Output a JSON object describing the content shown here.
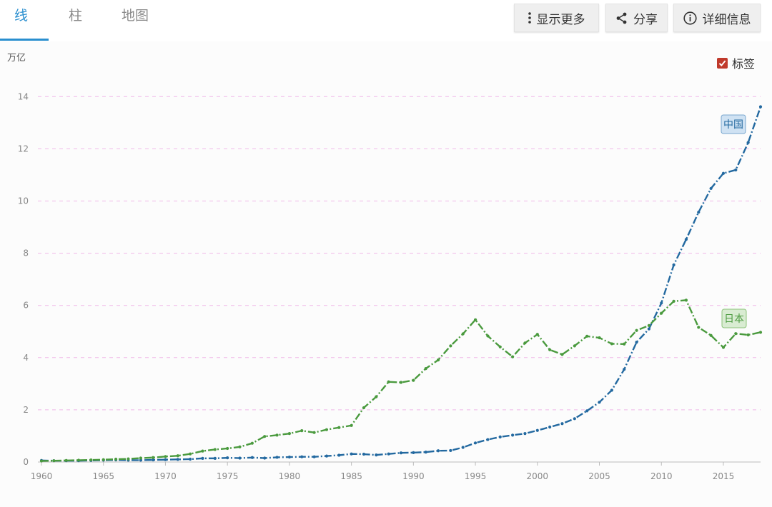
{
  "tabs": [
    {
      "label": "线",
      "active": true
    },
    {
      "label": "柱",
      "active": false
    },
    {
      "label": "地图",
      "active": false
    }
  ],
  "toolbar": {
    "more_label": "显示更多",
    "share_label": "分享",
    "details_label": "详细信息"
  },
  "labels_toggle": {
    "label": "标签",
    "checked": true
  },
  "colors": {
    "accent": "#2a8fcf",
    "china": "#2369a0",
    "japan": "#4a9a3e",
    "grid": "#f0b8e8",
    "checkbox": "#c0392b"
  },
  "chart_data": {
    "type": "line",
    "title": "",
    "ylabel": "万亿",
    "xlabel": "",
    "ylim": [
      0,
      14.5
    ],
    "xlim": [
      1960,
      2018
    ],
    "yticks": [
      0,
      2,
      4,
      6,
      8,
      10,
      12,
      14
    ],
    "xticks": [
      1960,
      1965,
      1970,
      1975,
      1980,
      1985,
      1990,
      1995,
      2000,
      2005,
      2010,
      2015
    ],
    "x": [
      1960,
      1961,
      1962,
      1963,
      1964,
      1965,
      1966,
      1967,
      1968,
      1969,
      1970,
      1971,
      1972,
      1973,
      1974,
      1975,
      1976,
      1977,
      1978,
      1979,
      1980,
      1981,
      1982,
      1983,
      1984,
      1985,
      1986,
      1987,
      1988,
      1989,
      1990,
      1991,
      1992,
      1993,
      1994,
      1995,
      1996,
      1997,
      1998,
      1999,
      2000,
      2001,
      2002,
      2003,
      2004,
      2005,
      2006,
      2007,
      2008,
      2009,
      2010,
      2011,
      2012,
      2013,
      2014,
      2015,
      2016,
      2017,
      2018
    ],
    "series": [
      {
        "name": "中国",
        "values": [
          0.06,
          0.05,
          0.05,
          0.05,
          0.06,
          0.07,
          0.08,
          0.07,
          0.07,
          0.08,
          0.09,
          0.1,
          0.11,
          0.14,
          0.14,
          0.16,
          0.15,
          0.17,
          0.15,
          0.18,
          0.19,
          0.2,
          0.2,
          0.23,
          0.26,
          0.31,
          0.3,
          0.27,
          0.31,
          0.35,
          0.36,
          0.38,
          0.43,
          0.44,
          0.56,
          0.73,
          0.86,
          0.96,
          1.03,
          1.09,
          1.21,
          1.34,
          1.47,
          1.66,
          1.96,
          2.29,
          2.75,
          3.55,
          4.59,
          5.1,
          6.09,
          7.55,
          8.53,
          9.57,
          10.48,
          11.06,
          11.19,
          12.24,
          13.61
        ]
      },
      {
        "name": "日本",
        "values": [
          0.04,
          0.05,
          0.06,
          0.07,
          0.08,
          0.09,
          0.11,
          0.12,
          0.15,
          0.17,
          0.21,
          0.24,
          0.31,
          0.42,
          0.48,
          0.52,
          0.58,
          0.72,
          0.98,
          1.03,
          1.09,
          1.2,
          1.13,
          1.24,
          1.32,
          1.4,
          2.08,
          2.5,
          3.07,
          3.05,
          3.13,
          3.58,
          3.91,
          4.45,
          4.91,
          5.45,
          4.83,
          4.41,
          4.03,
          4.56,
          4.89,
          4.3,
          4.12,
          4.45,
          4.82,
          4.76,
          4.53,
          4.52,
          5.04,
          5.23,
          5.7,
          6.16,
          6.2,
          5.16,
          4.85,
          4.39,
          4.92,
          4.87,
          4.97
        ]
      }
    ]
  }
}
